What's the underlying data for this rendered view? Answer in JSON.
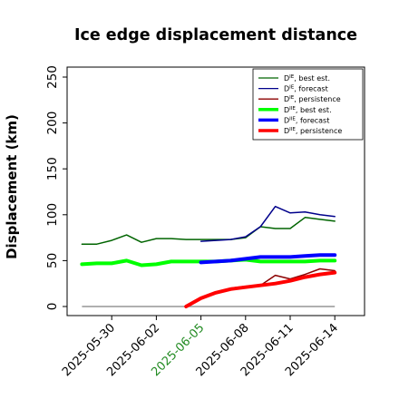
{
  "chart_data": {
    "type": "line",
    "title": "Ice edge displacement distance",
    "ylabel": "Displacement (km)",
    "xlabel": "",
    "ylim": [
      0,
      260
    ],
    "yticks": [
      0,
      50,
      100,
      150,
      200,
      250
    ],
    "xlim": [
      "2025-05-27",
      "2025-06-16"
    ],
    "xticks": [
      {
        "label": "2025-05-30",
        "date": "2025-05-30",
        "color": "#000000"
      },
      {
        "label": "2025-06-02",
        "date": "2025-06-02",
        "color": "#000000"
      },
      {
        "label": "2025-06-05",
        "date": "2025-06-05",
        "color": "#228B22"
      },
      {
        "label": "2025-06-08",
        "date": "2025-06-08",
        "color": "#000000"
      },
      {
        "label": "2025-06-11",
        "date": "2025-06-11",
        "color": "#000000"
      },
      {
        "label": "2025-06-14",
        "date": "2025-06-14",
        "color": "#000000"
      }
    ],
    "legend_position": "top-right",
    "baseline": {
      "y": 0,
      "color": "#808080",
      "x_start": "2025-05-28",
      "x_end": "2025-06-14"
    },
    "series": [
      {
        "name": "Dᴵᴱ, best est.",
        "legend_base": "D",
        "legend_sup": "IE",
        "legend_rest": ", best est.",
        "color": "#006400",
        "width": 1.5,
        "points": [
          [
            "2025-05-28",
            68
          ],
          [
            "2025-05-29",
            68
          ],
          [
            "2025-05-30",
            72
          ],
          [
            "2025-05-31",
            78
          ],
          [
            "2025-06-01",
            70
          ],
          [
            "2025-06-02",
            74
          ],
          [
            "2025-06-03",
            74
          ],
          [
            "2025-06-04",
            73
          ],
          [
            "2025-06-05",
            73
          ],
          [
            "2025-06-06",
            73
          ],
          [
            "2025-06-07",
            73
          ],
          [
            "2025-06-08",
            75
          ],
          [
            "2025-06-09",
            87
          ],
          [
            "2025-06-10",
            85
          ],
          [
            "2025-06-11",
            85
          ],
          [
            "2025-06-12",
            97
          ],
          [
            "2025-06-13",
            95
          ],
          [
            "2025-06-14",
            93
          ]
        ]
      },
      {
        "name": "Dᴵᴱ, forecast",
        "legend_base": "D",
        "legend_sup": "IE",
        "legend_rest": ", forecast",
        "color": "#00008B",
        "width": 1.5,
        "points": [
          [
            "2025-06-05",
            71
          ],
          [
            "2025-06-06",
            72
          ],
          [
            "2025-06-07",
            73
          ],
          [
            "2025-06-08",
            76
          ],
          [
            "2025-06-09",
            87
          ],
          [
            "2025-06-10",
            109
          ],
          [
            "2025-06-11",
            102
          ],
          [
            "2025-06-12",
            103
          ],
          [
            "2025-06-13",
            100
          ],
          [
            "2025-06-14",
            98
          ]
        ]
      },
      {
        "name": "Dᴵᴱ, persistence",
        "legend_base": "D",
        "legend_sup": "IE",
        "legend_rest": ", persistence",
        "color": "#8B0000",
        "width": 1.5,
        "points": [
          [
            "2025-06-04",
            0
          ],
          [
            "2025-06-05",
            9
          ],
          [
            "2025-06-06",
            15
          ],
          [
            "2025-06-07",
            20
          ],
          [
            "2025-06-08",
            22
          ],
          [
            "2025-06-09",
            23
          ],
          [
            "2025-06-10",
            34
          ],
          [
            "2025-06-11",
            30
          ],
          [
            "2025-06-12",
            35
          ],
          [
            "2025-06-13",
            41
          ],
          [
            "2025-06-14",
            39
          ]
        ]
      },
      {
        "name": "Dᴵᴵᴱ, best est.",
        "legend_base": "D",
        "legend_sup": "IIE",
        "legend_rest": ", best est.",
        "color": "#00FF00",
        "width": 4,
        "points": [
          [
            "2025-05-28",
            46
          ],
          [
            "2025-05-29",
            47
          ],
          [
            "2025-05-30",
            47
          ],
          [
            "2025-05-31",
            50
          ],
          [
            "2025-06-01",
            45
          ],
          [
            "2025-06-02",
            46
          ],
          [
            "2025-06-03",
            49
          ],
          [
            "2025-06-04",
            49
          ],
          [
            "2025-06-05",
            49
          ],
          [
            "2025-06-06",
            49
          ],
          [
            "2025-06-07",
            50
          ],
          [
            "2025-06-08",
            51
          ],
          [
            "2025-06-09",
            49
          ],
          [
            "2025-06-10",
            49
          ],
          [
            "2025-06-11",
            49
          ],
          [
            "2025-06-12",
            49
          ],
          [
            "2025-06-13",
            50
          ],
          [
            "2025-06-14",
            50
          ]
        ]
      },
      {
        "name": "Dᴵᴵᴱ, forecast",
        "legend_base": "D",
        "legend_sup": "IIE",
        "legend_rest": ", forecast",
        "color": "#0000FF",
        "width": 4,
        "points": [
          [
            "2025-06-05",
            48
          ],
          [
            "2025-06-06",
            49
          ],
          [
            "2025-06-07",
            50
          ],
          [
            "2025-06-08",
            52
          ],
          [
            "2025-06-09",
            54
          ],
          [
            "2025-06-10",
            54
          ],
          [
            "2025-06-11",
            54
          ],
          [
            "2025-06-12",
            55
          ],
          [
            "2025-06-13",
            56
          ],
          [
            "2025-06-14",
            56
          ]
        ]
      },
      {
        "name": "Dᴵᴵᴱ, persistence",
        "legend_base": "D",
        "legend_sup": "IIE",
        "legend_rest": ", persistence",
        "color": "#FF0000",
        "width": 4,
        "points": [
          [
            "2025-06-04",
            0
          ],
          [
            "2025-06-05",
            9
          ],
          [
            "2025-06-06",
            15
          ],
          [
            "2025-06-07",
            19
          ],
          [
            "2025-06-08",
            21
          ],
          [
            "2025-06-09",
            23
          ],
          [
            "2025-06-10",
            25
          ],
          [
            "2025-06-11",
            28
          ],
          [
            "2025-06-12",
            32
          ],
          [
            "2025-06-13",
            35
          ],
          [
            "2025-06-14",
            37
          ]
        ]
      }
    ]
  }
}
